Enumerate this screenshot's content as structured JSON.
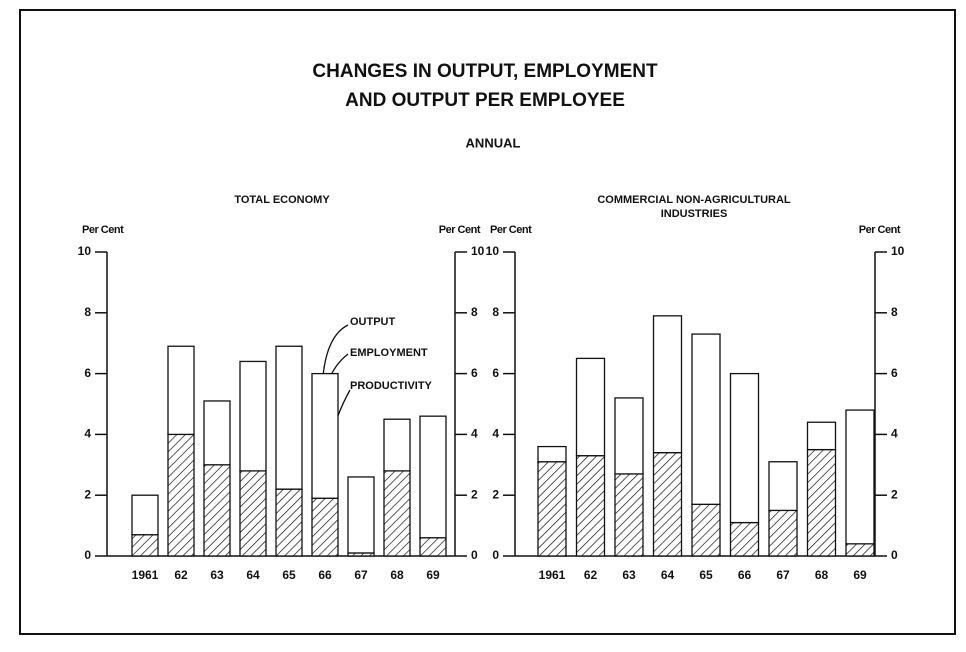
{
  "header": {
    "title": [
      "CHANGES IN OUTPUT, EMPLOYMENT",
      "AND OUTPUT PER EMPLOYEE"
    ],
    "subtitle": "ANNUAL"
  },
  "chart_data": [
    {
      "type": "bar",
      "stacked": true,
      "title": [
        "TOTAL ECONOMY"
      ],
      "ylabel": "Per Cent",
      "categories": [
        "1961",
        "62",
        "63",
        "64",
        "65",
        "66",
        "67",
        "68",
        "69"
      ],
      "series": [
        {
          "pattern": "hatch",
          "color": "#111",
          "values": [
            0.7,
            4.0,
            3.0,
            2.8,
            2.2,
            1.9,
            0.1,
            2.8,
            0.6
          ]
        },
        {
          "pattern": "none",
          "color": "#111",
          "values": [
            1.3,
            2.9,
            2.1,
            3.6,
            4.7,
            4.1,
            2.5,
            1.7,
            4.0
          ]
        }
      ],
      "annotations": [
        "OUTPUT",
        "EMPLOYMENT",
        "PRODUCTIVITY"
      ],
      "ylim": [
        0,
        10
      ],
      "yticks": [
        0,
        2,
        4,
        6,
        8,
        10
      ]
    },
    {
      "type": "bar",
      "stacked": true,
      "title": [
        "COMMERCIAL  NON-AGRICULTURAL",
        "INDUSTRIES"
      ],
      "ylabel": "Per Cent",
      "categories": [
        "1961",
        "62",
        "63",
        "64",
        "65",
        "66",
        "67",
        "68",
        "69"
      ],
      "series": [
        {
          "pattern": "hatch",
          "color": "#111",
          "values": [
            3.1,
            3.3,
            2.7,
            3.4,
            1.7,
            1.1,
            1.5,
            3.5,
            0.4
          ]
        },
        {
          "pattern": "none",
          "color": "#111",
          "values": [
            0.5,
            3.2,
            2.5,
            4.5,
            5.6,
            4.9,
            1.6,
            0.9,
            4.4
          ]
        }
      ],
      "ylim": [
        0,
        10
      ],
      "yticks": [
        0,
        2,
        4,
        6,
        8,
        10
      ]
    }
  ]
}
